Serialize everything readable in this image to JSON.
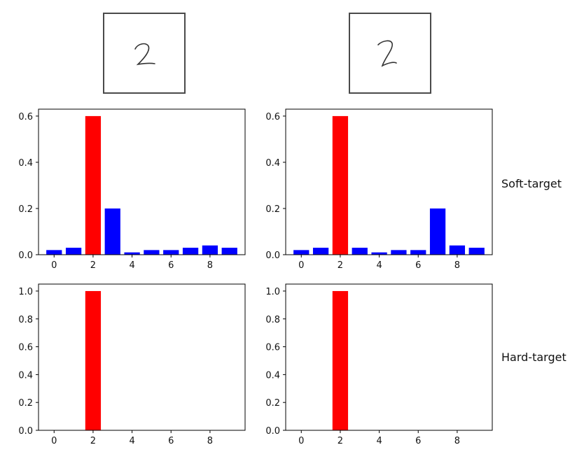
{
  "labels": {
    "soft": "Soft-target",
    "hard": "Hard-target"
  },
  "digits": [
    {
      "icon": "handwritten-digit-2-icon"
    },
    {
      "icon": "handwritten-digit-2-variant-icon"
    }
  ],
  "colors": {
    "highlight": "#ff0000",
    "other": "#0000ff",
    "axis": "#000000",
    "box": "#4a4a4a"
  },
  "chart_data": [
    {
      "type": "bar",
      "row": "soft",
      "x": [
        0,
        1,
        2,
        3,
        4,
        5,
        6,
        7,
        8,
        9
      ],
      "values": [
        0.02,
        0.03,
        0.6,
        0.2,
        0.01,
        0.02,
        0.02,
        0.03,
        0.04,
        0.03
      ],
      "highlight_index": 2,
      "xticks": [
        0,
        2,
        4,
        6,
        8
      ],
      "yticks": [
        0.0,
        0.2,
        0.4,
        0.6
      ],
      "ylim": [
        0,
        0.63
      ],
      "xlim": [
        -0.8,
        9.8
      ]
    },
    {
      "type": "bar",
      "row": "soft",
      "x": [
        0,
        1,
        2,
        3,
        4,
        5,
        6,
        7,
        8,
        9
      ],
      "values": [
        0.02,
        0.03,
        0.6,
        0.03,
        0.01,
        0.02,
        0.02,
        0.2,
        0.04,
        0.03
      ],
      "highlight_index": 2,
      "xticks": [
        0,
        2,
        4,
        6,
        8
      ],
      "yticks": [
        0.0,
        0.2,
        0.4,
        0.6
      ],
      "ylim": [
        0,
        0.63
      ],
      "xlim": [
        -0.8,
        9.8
      ]
    },
    {
      "type": "bar",
      "row": "hard",
      "x": [
        0,
        1,
        2,
        3,
        4,
        5,
        6,
        7,
        8,
        9
      ],
      "values": [
        0,
        0,
        1.0,
        0,
        0,
        0,
        0,
        0,
        0,
        0
      ],
      "highlight_index": 2,
      "xticks": [
        0,
        2,
        4,
        6,
        8
      ],
      "yticks": [
        0.0,
        0.2,
        0.4,
        0.6,
        0.8,
        1.0
      ],
      "ylim": [
        0,
        1.05
      ],
      "xlim": [
        -0.8,
        9.8
      ]
    },
    {
      "type": "bar",
      "row": "hard",
      "x": [
        0,
        1,
        2,
        3,
        4,
        5,
        6,
        7,
        8,
        9
      ],
      "values": [
        0,
        0,
        1.0,
        0,
        0,
        0,
        0,
        0,
        0,
        0
      ],
      "highlight_index": 2,
      "xticks": [
        0,
        2,
        4,
        6,
        8
      ],
      "yticks": [
        0.0,
        0.2,
        0.4,
        0.6,
        0.8,
        1.0
      ],
      "ylim": [
        0,
        1.05
      ],
      "xlim": [
        -0.8,
        9.8
      ]
    }
  ]
}
